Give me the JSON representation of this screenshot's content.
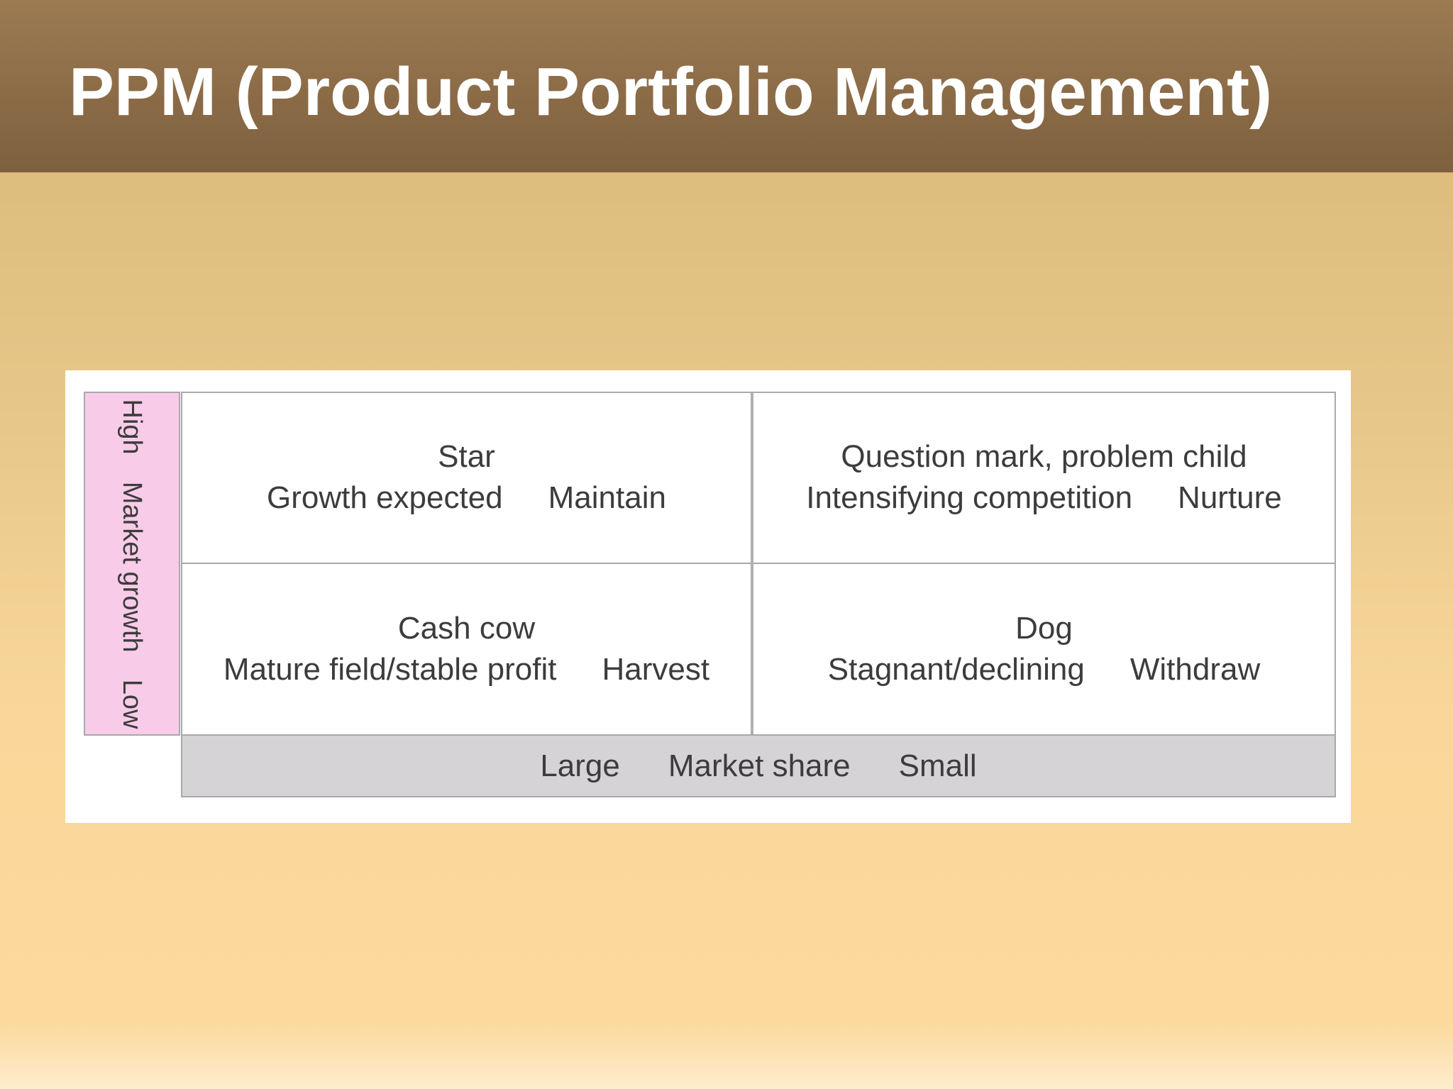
{
  "title": "PPM (Product Portfolio Management)",
  "matrix": {
    "y_axis": {
      "high": "High",
      "label": "Market growth",
      "low": "Low"
    },
    "x_axis": {
      "large": "Large",
      "label": "Market share",
      "small": "Small"
    },
    "quadrants": {
      "top_left": {
        "name": "Star",
        "condition": "Growth expected",
        "strategy": "Maintain"
      },
      "top_right": {
        "name": "Question mark, problem child",
        "condition": "Intensifying competition",
        "strategy": "Nurture"
      },
      "bottom_left": {
        "name": "Cash cow",
        "condition": "Mature field/stable profit",
        "strategy": "Harvest"
      },
      "bottom_right": {
        "name": "Dog",
        "condition": "Stagnant/declining",
        "strategy": "Withdraw"
      }
    }
  },
  "colors": {
    "title_bar": "#8a6a46",
    "background": "#fcd99c",
    "y_axis_fill": "#f8cce8",
    "x_axis_fill": "#d5d3d6"
  }
}
